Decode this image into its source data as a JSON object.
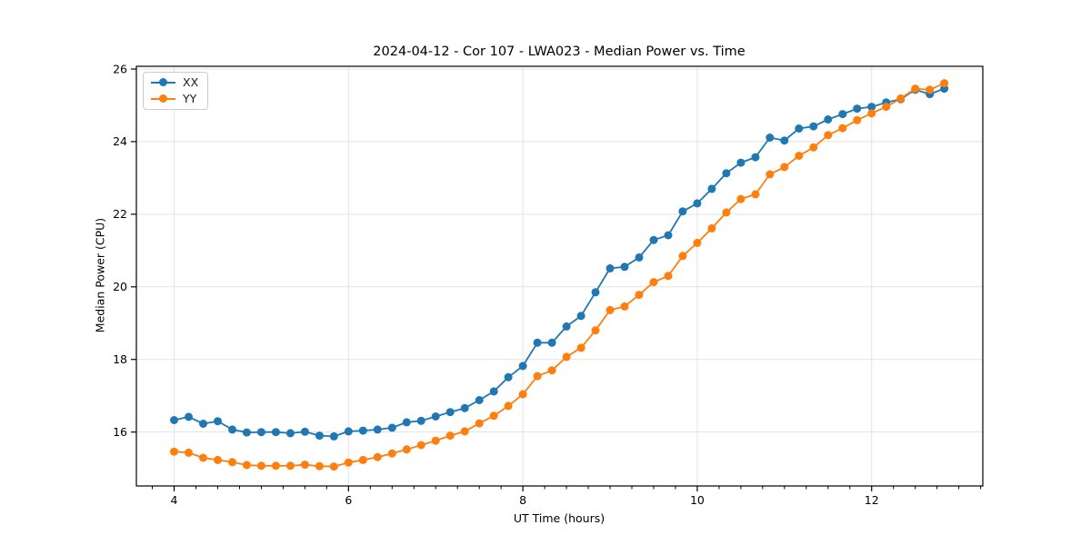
{
  "figure": {
    "title": "2024-04-12 - Cor 107 - LWA023 - Median Power vs. Time",
    "background_color": "#ffffff"
  },
  "axes": {
    "xlabel": "UT Time (hours)",
    "ylabel": "Median Power (CPU)",
    "x_tick_labels": [
      "4",
      "6",
      "8",
      "10",
      "12"
    ],
    "y_tick_labels": [
      "16",
      "18",
      "20",
      "22",
      "24",
      "26"
    ],
    "spine_color": "#000000",
    "grid_color": "#e3e3e3",
    "tick_label_color": "#000000"
  },
  "legend": {
    "position": "upper left",
    "entries": [
      {
        "label": "XX",
        "color": "#1f77b4"
      },
      {
        "label": "YY",
        "color": "#ff7f0e"
      }
    ]
  },
  "chart_data": {
    "type": "line",
    "title": "2024-04-12 - Cor 107 - LWA023 - Median Power vs. Time",
    "xlabel": "UT Time (hours)",
    "ylabel": "Median Power (CPU)",
    "marker": "circle",
    "grid": true,
    "legend_position": "upper left",
    "xlim": [
      3.567,
      13.275
    ],
    "ylim": [
      14.515,
      26.075
    ],
    "x_ticks": [
      4,
      6,
      8,
      10,
      12
    ],
    "y_ticks": [
      16,
      18,
      20,
      22,
      24,
      26
    ],
    "x_minor_tick_step": 0.25,
    "x": [
      4.0,
      4.167,
      4.333,
      4.5,
      4.667,
      4.833,
      5.0,
      5.167,
      5.333,
      5.5,
      5.667,
      5.833,
      6.0,
      6.167,
      6.333,
      6.5,
      6.667,
      6.833,
      7.0,
      7.167,
      7.333,
      7.5,
      7.667,
      7.833,
      8.0,
      8.167,
      8.333,
      8.5,
      8.667,
      8.833,
      9.0,
      9.167,
      9.333,
      9.5,
      9.667,
      9.833,
      10.0,
      10.167,
      10.333,
      10.5,
      10.667,
      10.833,
      11.0,
      11.167,
      11.333,
      11.5,
      11.667,
      11.833,
      12.0,
      12.167,
      12.333,
      12.5,
      12.667,
      12.833
    ],
    "series": [
      {
        "name": "XX",
        "color": "#1f77b4",
        "values": [
          16.33,
          16.42,
          16.23,
          16.3,
          16.07,
          15.99,
          16.0,
          16.0,
          15.97,
          16.01,
          15.9,
          15.88,
          16.02,
          16.04,
          16.07,
          16.12,
          16.27,
          16.31,
          16.43,
          16.55,
          16.66,
          16.88,
          17.12,
          17.51,
          17.82,
          18.46,
          18.46,
          18.91,
          19.2,
          19.85,
          20.51,
          20.55,
          20.81,
          21.29,
          21.42,
          22.08,
          22.3,
          22.7,
          23.13,
          23.42,
          23.57,
          24.11,
          24.03,
          24.36,
          24.42,
          24.61,
          24.76,
          24.91,
          24.96,
          25.08,
          25.17,
          25.43,
          25.31,
          25.46
        ]
      },
      {
        "name": "YY",
        "color": "#ff7f0e",
        "values": [
          15.46,
          15.43,
          15.29,
          15.23,
          15.17,
          15.09,
          15.07,
          15.07,
          15.07,
          15.1,
          15.06,
          15.05,
          15.16,
          15.23,
          15.31,
          15.41,
          15.52,
          15.64,
          15.76,
          15.9,
          16.02,
          16.24,
          16.45,
          16.72,
          17.04,
          17.54,
          17.7,
          18.07,
          18.32,
          18.8,
          19.36,
          19.46,
          19.78,
          20.13,
          20.3,
          20.85,
          21.21,
          21.61,
          22.05,
          22.42,
          22.55,
          23.1,
          23.3,
          23.61,
          23.84,
          24.18,
          24.37,
          24.59,
          24.78,
          24.96,
          25.19,
          25.46,
          25.43,
          25.61
        ]
      }
    ]
  }
}
